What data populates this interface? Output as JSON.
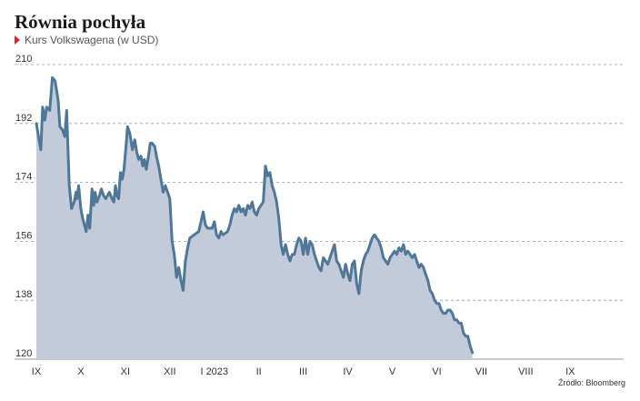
{
  "title": "Równia pochyła",
  "subtitle": "Kurs Volkswagena (w USD)",
  "source": "Źródło: Bloomberg",
  "colors": {
    "line": "#4f7797",
    "fill": "#c3cad9",
    "grid": "#9a9a9a",
    "marker": "#d9222a"
  },
  "chart_data": {
    "type": "area",
    "ylim": [
      120,
      210
    ],
    "yticks": [
      120,
      138,
      156,
      174,
      192,
      210
    ],
    "grid": "horizontal dashed",
    "xlim": [
      0,
      13.2
    ],
    "xticks": [
      {
        "label": "IX",
        "pos": 0
      },
      {
        "label": "X",
        "pos": 1
      },
      {
        "label": "XI",
        "pos": 2
      },
      {
        "label": "XII",
        "pos": 3
      },
      {
        "label": "I 2023",
        "pos": 4
      },
      {
        "label": "II",
        "pos": 5
      },
      {
        "label": "III",
        "pos": 6
      },
      {
        "label": "IV",
        "pos": 7
      },
      {
        "label": "V",
        "pos": 8
      },
      {
        "label": "VI",
        "pos": 9
      },
      {
        "label": "VII",
        "pos": 10
      },
      {
        "label": "VIII",
        "pos": 11
      },
      {
        "label": "IX",
        "pos": 12
      }
    ],
    "series": [
      {
        "points": [
          [
            0.0,
            192
          ],
          [
            0.06,
            187
          ],
          [
            0.1,
            184
          ],
          [
            0.14,
            197
          ],
          [
            0.19,
            193
          ],
          [
            0.23,
            197
          ],
          [
            0.3,
            196
          ],
          [
            0.36,
            206
          ],
          [
            0.42,
            205
          ],
          [
            0.49,
            199
          ],
          [
            0.53,
            191
          ],
          [
            0.59,
            190
          ],
          [
            0.64,
            188
          ],
          [
            0.68,
            196
          ],
          [
            0.74,
            173
          ],
          [
            0.79,
            166
          ],
          [
            0.85,
            168
          ],
          [
            0.89,
            171
          ],
          [
            0.91,
            169
          ],
          [
            0.95,
            173
          ],
          [
            1.0,
            166
          ],
          [
            1.04,
            163
          ],
          [
            1.08,
            161
          ],
          [
            1.12,
            159
          ],
          [
            1.16,
            164
          ],
          [
            1.2,
            160
          ],
          [
            1.25,
            172
          ],
          [
            1.29,
            167
          ],
          [
            1.32,
            171
          ],
          [
            1.36,
            168
          ],
          [
            1.42,
            170
          ],
          [
            1.46,
            172
          ],
          [
            1.51,
            170
          ],
          [
            1.56,
            169
          ],
          [
            1.64,
            171
          ],
          [
            1.7,
            169
          ],
          [
            1.74,
            168
          ],
          [
            1.78,
            173
          ],
          [
            1.81,
            170
          ],
          [
            1.85,
            169
          ],
          [
            1.89,
            177
          ],
          [
            1.93,
            175
          ],
          [
            1.97,
            178
          ],
          [
            2.02,
            186
          ],
          [
            2.05,
            191
          ],
          [
            2.1,
            189
          ],
          [
            2.16,
            184
          ],
          [
            2.21,
            187
          ],
          [
            2.26,
            183
          ],
          [
            2.3,
            181
          ],
          [
            2.35,
            182
          ],
          [
            2.39,
            179
          ],
          [
            2.43,
            181
          ],
          [
            2.47,
            178
          ],
          [
            2.52,
            182
          ],
          [
            2.56,
            186
          ],
          [
            2.6,
            186
          ],
          [
            2.66,
            185
          ],
          [
            2.7,
            182
          ],
          [
            2.75,
            179
          ],
          [
            2.8,
            175
          ],
          [
            2.85,
            171
          ],
          [
            2.9,
            173
          ],
          [
            2.95,
            171
          ],
          [
            3.0,
            169
          ],
          [
            3.05,
            156
          ],
          [
            3.1,
            152
          ],
          [
            3.15,
            145
          ],
          [
            3.2,
            148
          ],
          [
            3.25,
            144
          ],
          [
            3.3,
            141
          ],
          [
            3.35,
            150
          ],
          [
            3.4,
            154
          ],
          [
            3.45,
            157
          ],
          [
            3.55,
            158
          ],
          [
            3.65,
            159
          ],
          [
            3.7,
            162
          ],
          [
            3.75,
            165
          ],
          [
            3.8,
            161
          ],
          [
            3.85,
            160
          ],
          [
            3.95,
            160
          ],
          [
            4.0,
            162
          ],
          [
            4.05,
            158
          ],
          [
            4.1,
            157
          ],
          [
            4.15,
            159
          ],
          [
            4.2,
            158
          ],
          [
            4.3,
            159
          ],
          [
            4.35,
            161
          ],
          [
            4.4,
            164
          ],
          [
            4.45,
            166
          ],
          [
            4.5,
            165
          ],
          [
            4.55,
            167
          ],
          [
            4.6,
            165
          ],
          [
            4.65,
            166
          ],
          [
            4.7,
            164
          ],
          [
            4.75,
            167
          ],
          [
            4.8,
            166
          ],
          [
            4.85,
            168
          ],
          [
            4.9,
            165
          ],
          [
            4.95,
            164
          ],
          [
            5.0,
            166
          ],
          [
            5.05,
            167
          ],
          [
            5.1,
            168
          ],
          [
            5.15,
            179
          ],
          [
            5.2,
            176
          ],
          [
            5.25,
            177
          ],
          [
            5.3,
            173
          ],
          [
            5.35,
            171
          ],
          [
            5.4,
            168
          ],
          [
            5.45,
            163
          ],
          [
            5.5,
            155
          ],
          [
            5.55,
            152
          ],
          [
            5.6,
            155
          ],
          [
            5.65,
            152
          ],
          [
            5.7,
            150
          ],
          [
            5.75,
            152
          ],
          [
            5.8,
            152
          ],
          [
            5.85,
            155
          ],
          [
            5.9,
            157
          ],
          [
            5.95,
            156
          ],
          [
            6.0,
            152
          ],
          [
            6.05,
            157
          ],
          [
            6.1,
            152
          ],
          [
            6.15,
            156
          ],
          [
            6.2,
            155
          ],
          [
            6.25,
            152
          ],
          [
            6.3,
            150
          ],
          [
            6.35,
            148
          ],
          [
            6.4,
            147
          ],
          [
            6.45,
            151
          ],
          [
            6.5,
            150
          ],
          [
            6.55,
            149
          ],
          [
            6.6,
            151
          ],
          [
            6.65,
            153
          ],
          [
            6.7,
            155
          ],
          [
            6.75,
            150
          ],
          [
            6.8,
            149
          ],
          [
            6.85,
            147
          ],
          [
            6.9,
            145
          ],
          [
            6.95,
            149
          ],
          [
            7.0,
            146
          ],
          [
            7.05,
            144
          ],
          [
            7.1,
            149
          ],
          [
            7.15,
            150
          ],
          [
            7.2,
            143
          ],
          [
            7.25,
            140
          ],
          [
            7.3,
            147
          ],
          [
            7.35,
            150
          ],
          [
            7.4,
            152
          ],
          [
            7.45,
            153
          ],
          [
            7.5,
            155
          ],
          [
            7.55,
            157
          ],
          [
            7.6,
            158
          ],
          [
            7.65,
            157
          ],
          [
            7.7,
            156
          ],
          [
            7.75,
            154
          ],
          [
            7.8,
            151
          ],
          [
            7.85,
            150
          ],
          [
            7.9,
            149
          ],
          [
            7.95,
            151
          ],
          [
            8.0,
            152
          ],
          [
            8.05,
            153
          ],
          [
            8.1,
            152
          ],
          [
            8.15,
            154
          ],
          [
            8.2,
            153
          ],
          [
            8.25,
            155
          ],
          [
            8.3,
            152
          ],
          [
            8.35,
            153
          ],
          [
            8.4,
            152
          ],
          [
            8.45,
            151
          ],
          [
            8.5,
            152
          ],
          [
            8.55,
            150
          ],
          [
            8.6,
            148
          ],
          [
            8.65,
            149
          ],
          [
            8.7,
            148
          ],
          [
            8.75,
            146
          ],
          [
            8.8,
            144
          ],
          [
            8.85,
            141
          ],
          [
            8.9,
            140
          ],
          [
            8.95,
            138
          ],
          [
            9.0,
            137
          ],
          [
            9.05,
            137
          ],
          [
            9.1,
            135
          ],
          [
            9.15,
            134
          ],
          [
            9.2,
            134
          ],
          [
            9.25,
            135
          ],
          [
            9.3,
            135
          ],
          [
            9.35,
            134
          ],
          [
            9.4,
            132
          ],
          [
            9.45,
            132
          ],
          [
            9.5,
            131
          ],
          [
            9.55,
            131
          ],
          [
            9.6,
            128
          ],
          [
            9.65,
            127
          ],
          [
            9.7,
            127
          ],
          [
            9.75,
            124
          ],
          [
            9.8,
            122
          ]
        ]
      }
    ]
  }
}
